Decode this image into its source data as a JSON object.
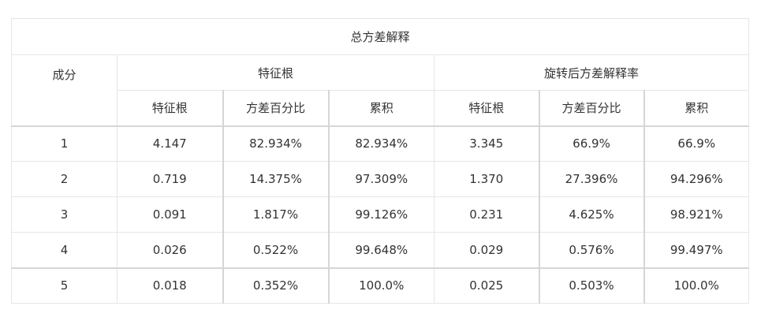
{
  "table": {
    "title": "总方差解释",
    "component_header": "成分",
    "group_headers": [
      "特征根",
      "旋转后方差解释率"
    ],
    "sub_headers": [
      "特征根",
      "方差百分比",
      "累积",
      "特征根",
      "方差百分比",
      "累积"
    ],
    "rows": [
      [
        "1",
        "4.147",
        "82.934%",
        "82.934%",
        "3.345",
        "66.9%",
        "66.9%"
      ],
      [
        "2",
        "0.719",
        "14.375%",
        "97.309%",
        "1.370",
        "27.396%",
        "94.296%"
      ],
      [
        "3",
        "0.091",
        "1.817%",
        "99.126%",
        "0.231",
        "4.625%",
        "98.921%"
      ],
      [
        "4",
        "0.026",
        "0.522%",
        "99.648%",
        "0.029",
        "0.576%",
        "99.497%"
      ],
      [
        "5",
        "0.018",
        "0.352%",
        "100.0%",
        "0.025",
        "0.503%",
        "100.0%"
      ]
    ]
  }
}
